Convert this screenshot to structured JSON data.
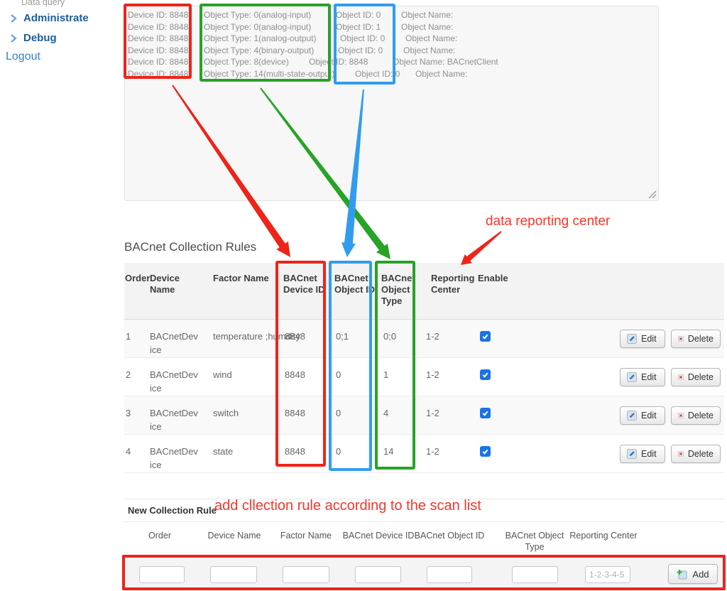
{
  "sidebar": {
    "data_query": "Data query",
    "administrate": "Administrate",
    "debug": "Debug",
    "logout": "Logout"
  },
  "scan_list": {
    "lines": [
      {
        "device": "Device ID: 8848",
        "type": "Object Type: 0(analog-input)",
        "id": "Object ID: 0",
        "name": "Object Name: "
      },
      {
        "device": "Device ID: 8848",
        "type": "Object Type: 0(analog-input)",
        "id": "Object ID: 1",
        "name": "Object Name: "
      },
      {
        "device": "Device ID: 8848",
        "type": "Object Type: 1(analog-output)",
        "id": "Object ID: 0",
        "name": "Object Name: "
      },
      {
        "device": "Device ID: 8848",
        "type": "Object Type: 4(binary-output)",
        "id": "Object ID: 0",
        "name": "Object Name: "
      },
      {
        "device": "Device ID: 8848",
        "type": "Object Type: 8(device)",
        "id": "Object ID: 8848",
        "name": "Object Name: BACnetClient"
      },
      {
        "device": "Device ID: 8848",
        "type": "Object Type: 14(multi-state-output)",
        "id": "Object ID: 0",
        "name": "Object Name: "
      }
    ]
  },
  "annotations": {
    "reporting_center": "data reporting center",
    "add_rule": "add cllection rule according to the scan list",
    "colors": {
      "red": "#ee2419",
      "green": "#27a327",
      "blue": "#319ced"
    }
  },
  "rules_table": {
    "title": "BACnet Collection Rules",
    "headers": [
      "Order",
      "Device Name",
      "Factor Name",
      "BACnet Device ID",
      "BACnet Object ID",
      "BACnet Object Type",
      "Reporting Center",
      "Enable"
    ],
    "rows": [
      {
        "order": "1",
        "device": "BACnetDevice",
        "factor": "temperature ;humdity",
        "device_id": "8848",
        "object_id": "0;1",
        "object_type": "0;0",
        "reporting": "1-2",
        "enabled": true
      },
      {
        "order": "2",
        "device": "BACnetDevice",
        "factor": "wind",
        "device_id": "8848",
        "object_id": "0",
        "object_type": "1",
        "reporting": "1-2",
        "enabled": true
      },
      {
        "order": "3",
        "device": "BACnetDevice",
        "factor": "switch",
        "device_id": "8848",
        "object_id": "0",
        "object_type": "4",
        "reporting": "1-2",
        "enabled": true
      },
      {
        "order": "4",
        "device": "BACnetDevice",
        "factor": "state",
        "device_id": "8848",
        "object_id": "0",
        "object_type": "14",
        "reporting": "1-2",
        "enabled": true
      }
    ],
    "edit_label": "Edit",
    "delete_label": "Delete"
  },
  "new_rule": {
    "title": "New Collection Rule",
    "labels": [
      "Order",
      "Device Name",
      "Factor Name",
      "BACnet Device ID",
      "BACnet Object ID",
      "BACnet Object Type",
      "Reporting Center"
    ],
    "reporting_placeholder": "1-2-3-4-5",
    "add_label": "Add"
  }
}
